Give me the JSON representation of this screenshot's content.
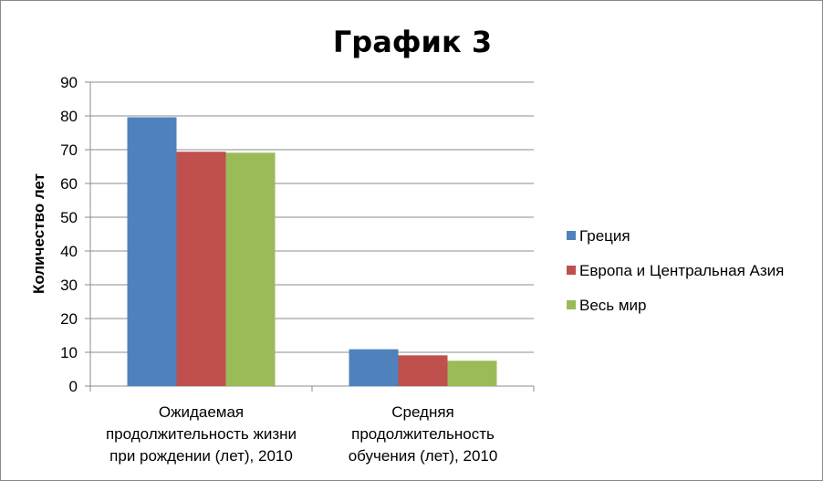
{
  "chart_data": {
    "type": "bar",
    "title": "График 3",
    "ylabel": "Количество лет",
    "xlabel": "",
    "ylim": [
      0,
      90
    ],
    "yticks": [
      0,
      10,
      20,
      30,
      40,
      50,
      60,
      70,
      80,
      90
    ],
    "grid": true,
    "legend_position": "right",
    "categories": [
      [
        "Ожидаемая",
        "продолжительность жизни",
        "при рождении (лет), 2010"
      ],
      [
        "Средняя",
        "продолжительность",
        "обучения (лет), 2010"
      ]
    ],
    "series": [
      {
        "name": "Греция",
        "color": "#4f81bd",
        "values": [
          79.6,
          10.9
        ]
      },
      {
        "name": "Европа и Центральная Азия",
        "color": "#c0504d",
        "values": [
          69.4,
          9.1
        ]
      },
      {
        "name": "Весь мир",
        "color": "#9bbb59",
        "values": [
          69.1,
          7.5
        ]
      }
    ]
  }
}
